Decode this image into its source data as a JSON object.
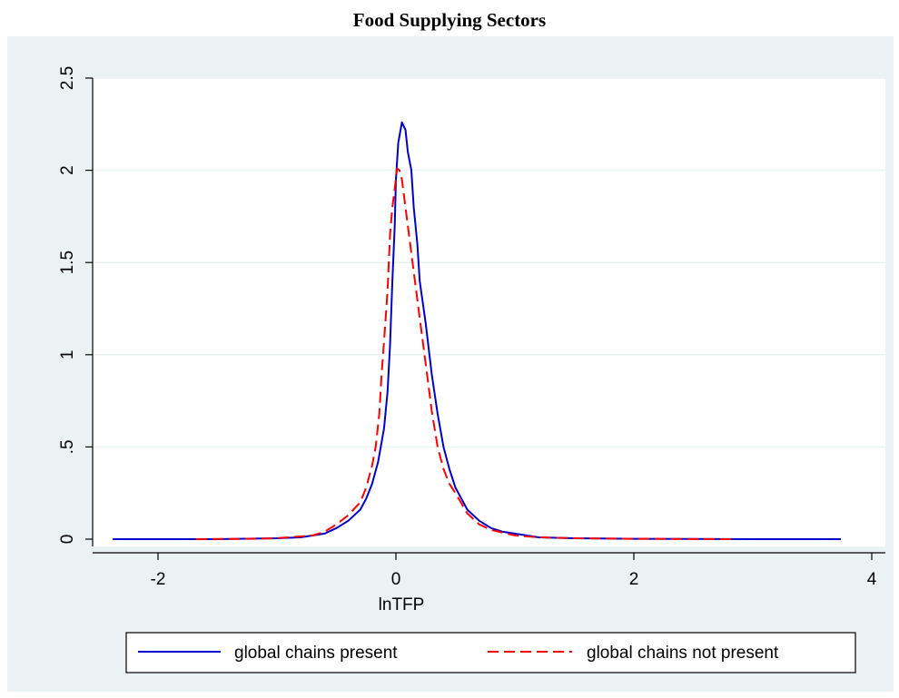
{
  "chart_data": {
    "type": "line",
    "title": "Food Supplying Sectors",
    "xlabel": "lnTFP",
    "ylabel": "",
    "xlim": [
      -2.4,
      4.0
    ],
    "ylim": [
      0,
      2.5
    ],
    "xticks": [
      -2,
      0,
      2,
      4
    ],
    "xtick_labels": [
      "-2",
      "0",
      "2",
      "4"
    ],
    "yticks": [
      0,
      0.5,
      1,
      1.5,
      2,
      2.5
    ],
    "ytick_labels": [
      "0",
      ".5",
      "1",
      "1.5",
      "2",
      "2.5"
    ],
    "grid": true,
    "legend_position": "bottom",
    "series": [
      {
        "name": "global chains present",
        "color": "#0000cc",
        "dash": "solid",
        "points": [
          [
            -2.38,
            0
          ],
          [
            -1.5,
            0
          ],
          [
            -1.0,
            0.005
          ],
          [
            -0.8,
            0.01
          ],
          [
            -0.6,
            0.03
          ],
          [
            -0.5,
            0.06
          ],
          [
            -0.4,
            0.1
          ],
          [
            -0.3,
            0.16
          ],
          [
            -0.25,
            0.22
          ],
          [
            -0.2,
            0.3
          ],
          [
            -0.15,
            0.42
          ],
          [
            -0.1,
            0.6
          ],
          [
            -0.07,
            0.8
          ],
          [
            -0.05,
            1.05
          ],
          [
            -0.03,
            1.4
          ],
          [
            -0.01,
            1.7
          ],
          [
            0.0,
            1.95
          ],
          [
            0.02,
            2.15
          ],
          [
            0.05,
            2.26
          ],
          [
            0.08,
            2.22
          ],
          [
            0.1,
            2.1
          ],
          [
            0.13,
            2.0
          ],
          [
            0.15,
            1.8
          ],
          [
            0.18,
            1.6
          ],
          [
            0.2,
            1.4
          ],
          [
            0.25,
            1.17
          ],
          [
            0.3,
            0.9
          ],
          [
            0.35,
            0.68
          ],
          [
            0.4,
            0.5
          ],
          [
            0.45,
            0.38
          ],
          [
            0.5,
            0.28
          ],
          [
            0.6,
            0.16
          ],
          [
            0.7,
            0.1
          ],
          [
            0.8,
            0.06
          ],
          [
            0.9,
            0.04
          ],
          [
            1.0,
            0.03
          ],
          [
            1.2,
            0.01
          ],
          [
            1.5,
            0.005
          ],
          [
            2.0,
            0.002
          ],
          [
            3.0,
            0
          ],
          [
            3.74,
            0
          ]
        ]
      },
      {
        "name": "global chains not present",
        "color": "#ff0000",
        "dash": "dashed",
        "points": [
          [
            -1.68,
            0
          ],
          [
            -1.2,
            0.002
          ],
          [
            -1.0,
            0.005
          ],
          [
            -0.9,
            0.01
          ],
          [
            -0.7,
            0.02
          ],
          [
            -0.6,
            0.04
          ],
          [
            -0.5,
            0.08
          ],
          [
            -0.4,
            0.13
          ],
          [
            -0.3,
            0.2
          ],
          [
            -0.25,
            0.28
          ],
          [
            -0.2,
            0.4
          ],
          [
            -0.17,
            0.5
          ],
          [
            -0.14,
            0.68
          ],
          [
            -0.12,
            0.9
          ],
          [
            -0.1,
            1.07
          ],
          [
            -0.07,
            1.35
          ],
          [
            -0.05,
            1.65
          ],
          [
            -0.03,
            1.8
          ],
          [
            -0.01,
            1.9
          ],
          [
            0.01,
            2.01
          ],
          [
            0.03,
            2.0
          ],
          [
            0.05,
            1.95
          ],
          [
            0.08,
            1.8
          ],
          [
            0.1,
            1.7
          ],
          [
            0.15,
            1.45
          ],
          [
            0.2,
            1.2
          ],
          [
            0.25,
            0.95
          ],
          [
            0.3,
            0.7
          ],
          [
            0.35,
            0.5
          ],
          [
            0.4,
            0.38
          ],
          [
            0.45,
            0.3
          ],
          [
            0.5,
            0.25
          ],
          [
            0.6,
            0.14
          ],
          [
            0.7,
            0.08
          ],
          [
            0.8,
            0.05
          ],
          [
            1.0,
            0.02
          ],
          [
            1.2,
            0.01
          ],
          [
            1.5,
            0.005
          ],
          [
            2.0,
            0.002
          ],
          [
            2.85,
            0
          ]
        ]
      }
    ]
  }
}
